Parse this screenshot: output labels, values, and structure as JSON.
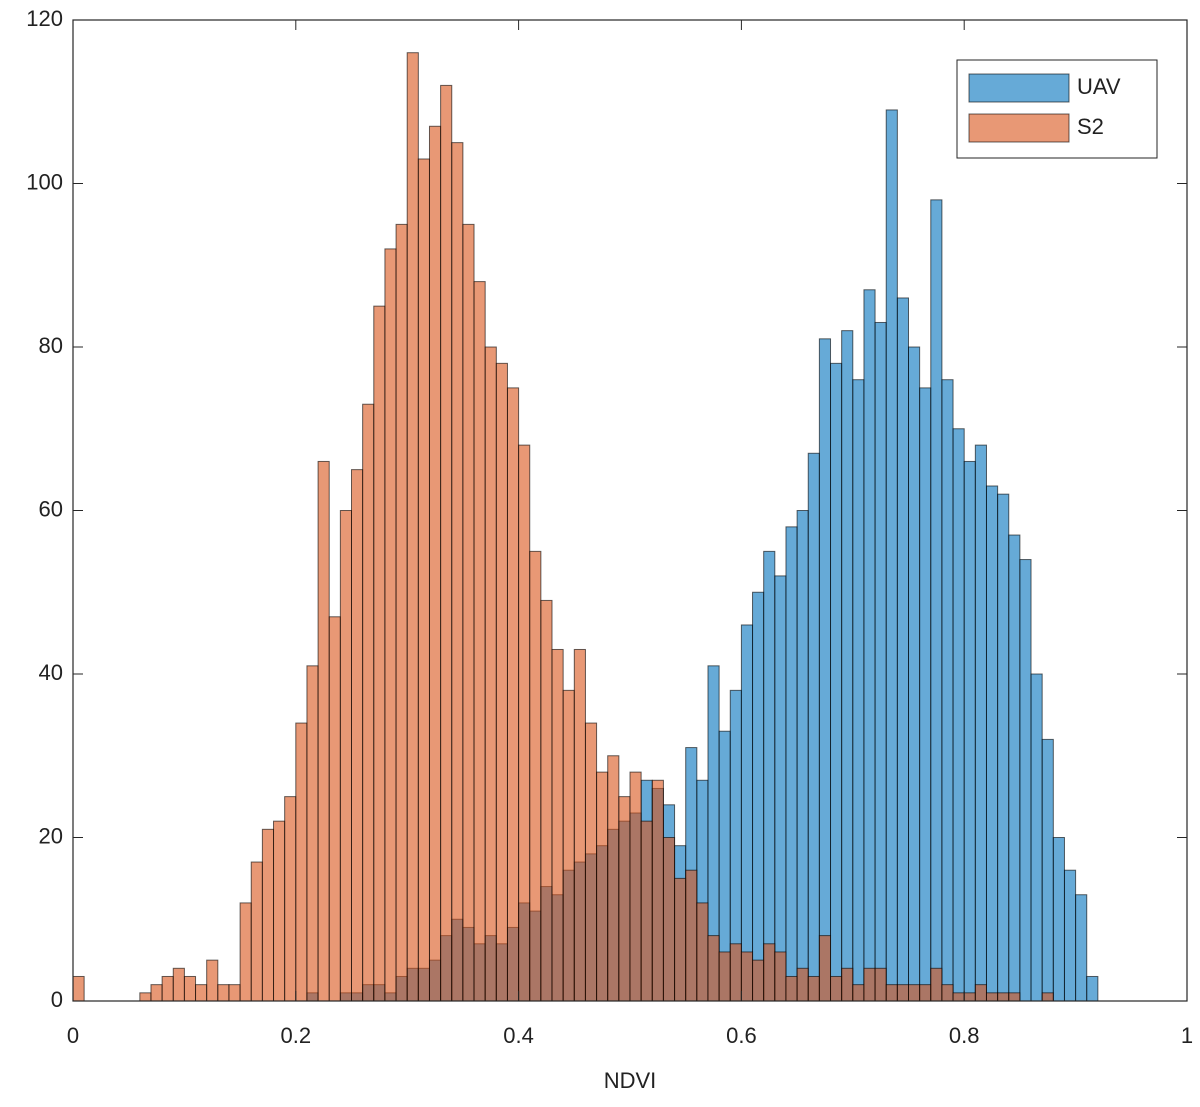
{
  "chart_data": {
    "type": "histogram",
    "xlabel": "NDVI",
    "bins": [
      0,
      0.01,
      0.02,
      0.03,
      0.04,
      0.05,
      0.06,
      0.07,
      0.08,
      0.09,
      0.1,
      0.11,
      0.12,
      0.13,
      0.14,
      0.15,
      0.16,
      0.17,
      0.18,
      0.19,
      0.2,
      0.21,
      0.22,
      0.23,
      0.24,
      0.25,
      0.26,
      0.27,
      0.28,
      0.29,
      0.3,
      0.31,
      0.32,
      0.33,
      0.34,
      0.35,
      0.36,
      0.37,
      0.38,
      0.39,
      0.4,
      0.41,
      0.42,
      0.43,
      0.44,
      0.45,
      0.46,
      0.47,
      0.48,
      0.49,
      0.5,
      0.51,
      0.52,
      0.53,
      0.54,
      0.55,
      0.56,
      0.57,
      0.58,
      0.59,
      0.6,
      0.61,
      0.62,
      0.63,
      0.64,
      0.65,
      0.66,
      0.67,
      0.68,
      0.69,
      0.7,
      0.71,
      0.72,
      0.73,
      0.74,
      0.75,
      0.76,
      0.77,
      0.78,
      0.79,
      0.8,
      0.81,
      0.82,
      0.83,
      0.84,
      0.85,
      0.86,
      0.87,
      0.88,
      0.89,
      0.9,
      0.91,
      0.92
    ],
    "series": [
      {
        "name": "UAV",
        "color": "#0072BD",
        "values": [
          0,
          0,
          0,
          0,
          0,
          0,
          0,
          0,
          0,
          0,
          0,
          0,
          0,
          0,
          0,
          0,
          0,
          0,
          0,
          0,
          0,
          1,
          0,
          0,
          1,
          1,
          2,
          2,
          1,
          3,
          4,
          4,
          5,
          8,
          10,
          9,
          7,
          8,
          7,
          9,
          12,
          11,
          14,
          13,
          16,
          17,
          18,
          19,
          21,
          22,
          23,
          27,
          26,
          24,
          19,
          31,
          27,
          41,
          33,
          38,
          46,
          50,
          55,
          52,
          58,
          60,
          67,
          81,
          78,
          82,
          76,
          87,
          83,
          109,
          86,
          80,
          75,
          98,
          76,
          70,
          66,
          68,
          63,
          62,
          57,
          54,
          40,
          32,
          20,
          16,
          13,
          3
        ]
      },
      {
        "name": "S2",
        "color": "#D95319",
        "values": [
          3,
          0,
          0,
          0,
          0,
          0,
          1,
          2,
          3,
          4,
          3,
          2,
          5,
          2,
          2,
          12,
          17,
          21,
          22,
          25,
          34,
          41,
          66,
          47,
          60,
          65,
          73,
          85,
          92,
          95,
          116,
          103,
          107,
          112,
          105,
          95,
          88,
          80,
          78,
          75,
          68,
          55,
          49,
          43,
          38,
          43,
          34,
          28,
          30,
          25,
          28,
          22,
          27,
          20,
          15,
          16,
          12,
          8,
          6,
          7,
          6,
          5,
          7,
          6,
          3,
          4,
          3,
          8,
          3,
          4,
          2,
          4,
          4,
          2,
          2,
          2,
          2,
          4,
          2,
          1,
          1,
          2,
          1,
          1,
          1,
          0,
          0,
          1,
          0,
          0,
          0,
          0
        ]
      }
    ],
    "xlim": [
      0,
      1
    ],
    "xticks": [
      0,
      0.2,
      0.4,
      0.6,
      0.8,
      1
    ],
    "ylim": [
      0,
      120
    ],
    "yticks": [
      0,
      20,
      40,
      60,
      80,
      100,
      120
    ],
    "legend": "northeast"
  }
}
